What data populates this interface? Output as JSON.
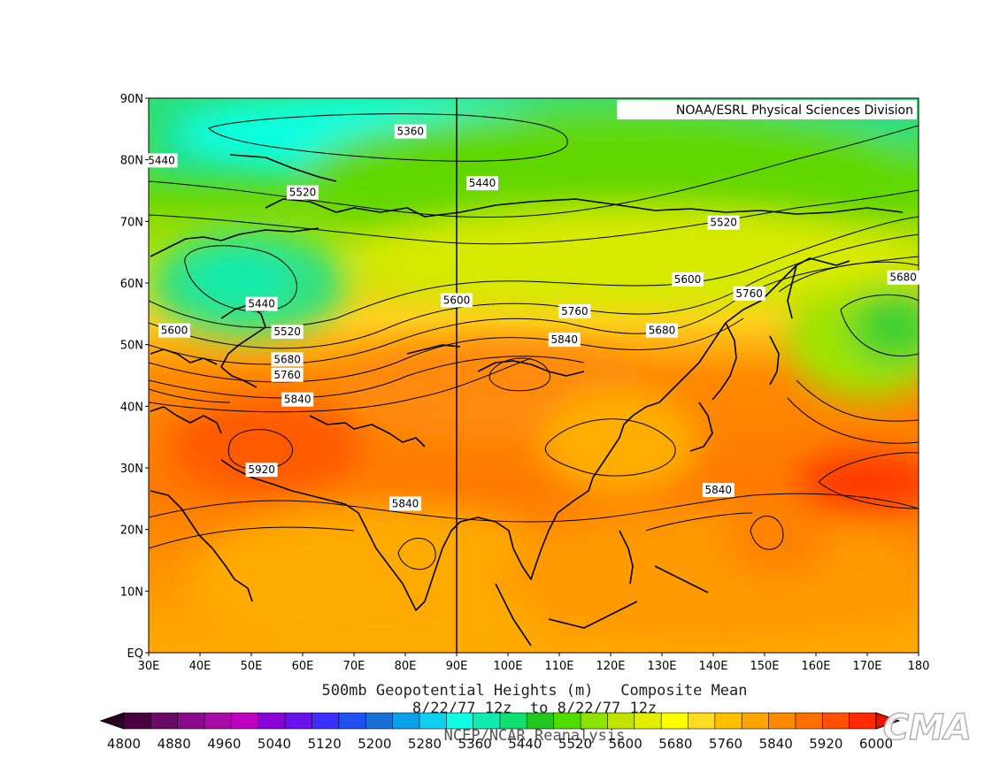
{
  "map": {
    "credit": "NOAA/ESRL Physical Sciences Division",
    "lat_labels": [
      "90N",
      "80N",
      "70N",
      "60N",
      "50N",
      "40N",
      "30N",
      "20N",
      "10N",
      "EQ"
    ],
    "lon_labels": [
      "30E",
      "40E",
      "50E",
      "60E",
      "70E",
      "80E",
      "90E",
      "100E",
      "110E",
      "120E",
      "130E",
      "140E",
      "150E",
      "160E",
      "170E",
      "180"
    ],
    "contour_labels": [
      {
        "text": "5360",
        "lon": 81,
        "lat": 84.6
      },
      {
        "text": "5440",
        "lon": 32.5,
        "lat": 79.9
      },
      {
        "text": "5440",
        "lon": 95,
        "lat": 76.2
      },
      {
        "text": "5520",
        "lon": 60,
        "lat": 74.7
      },
      {
        "text": "5520",
        "lon": 142,
        "lat": 69.8
      },
      {
        "text": "5440",
        "lon": 52,
        "lat": 56.6
      },
      {
        "text": "5600",
        "lon": 90,
        "lat": 57.2
      },
      {
        "text": "5600",
        "lon": 135,
        "lat": 60.6
      },
      {
        "text": "5680",
        "lon": 177,
        "lat": 60.9
      },
      {
        "text": "5760",
        "lon": 147,
        "lat": 58.3
      },
      {
        "text": "5600",
        "lon": 35,
        "lat": 52.3
      },
      {
        "text": "5520",
        "lon": 57,
        "lat": 52.1
      },
      {
        "text": "5760",
        "lon": 113,
        "lat": 55.4
      },
      {
        "text": "5680",
        "lon": 130,
        "lat": 52.3
      },
      {
        "text": "5840",
        "lon": 111,
        "lat": 50.8
      },
      {
        "text": "5680",
        "lon": 57,
        "lat": 47.6
      },
      {
        "text": "5760",
        "lon": 57,
        "lat": 45.1
      },
      {
        "text": "5840",
        "lon": 59,
        "lat": 41.1
      },
      {
        "text": "5920",
        "lon": 52,
        "lat": 29.7
      },
      {
        "text": "5840",
        "lon": 80,
        "lat": 24.2
      },
      {
        "text": "5840",
        "lon": 141,
        "lat": 26.4
      }
    ]
  },
  "caption": {
    "line1": "500mb Geopotential Heights (m)   Composite Mean",
    "line2": "8/22/77 12z  to 8/22/77 12z",
    "line3": "NCEP/NCAR Reanalysis"
  },
  "colorbar": {
    "labels": [
      "4800",
      "4880",
      "4960",
      "5040",
      "5120",
      "5200",
      "5280",
      "5360",
      "5440",
      "5520",
      "5600",
      "5680",
      "5760",
      "5840",
      "5920",
      "6000"
    ],
    "colors": [
      "#4a0040",
      "#6a0a66",
      "#8a0a8a",
      "#a80aa8",
      "#c000c0",
      "#8a00d8",
      "#6a10ee",
      "#3a30ff",
      "#2050f0",
      "#1670d6",
      "#0aa0ea",
      "#10d0f0",
      "#10ffe4",
      "#10ecb0",
      "#10e070",
      "#20c820",
      "#50dc00",
      "#8ce400",
      "#c0e400",
      "#e4ee00",
      "#ffff00",
      "#ffdc1e",
      "#ffc000",
      "#ffa400",
      "#ff8a00",
      "#ff6e00",
      "#ff5000",
      "#ff2a00"
    ],
    "watermark": "CMA"
  }
}
